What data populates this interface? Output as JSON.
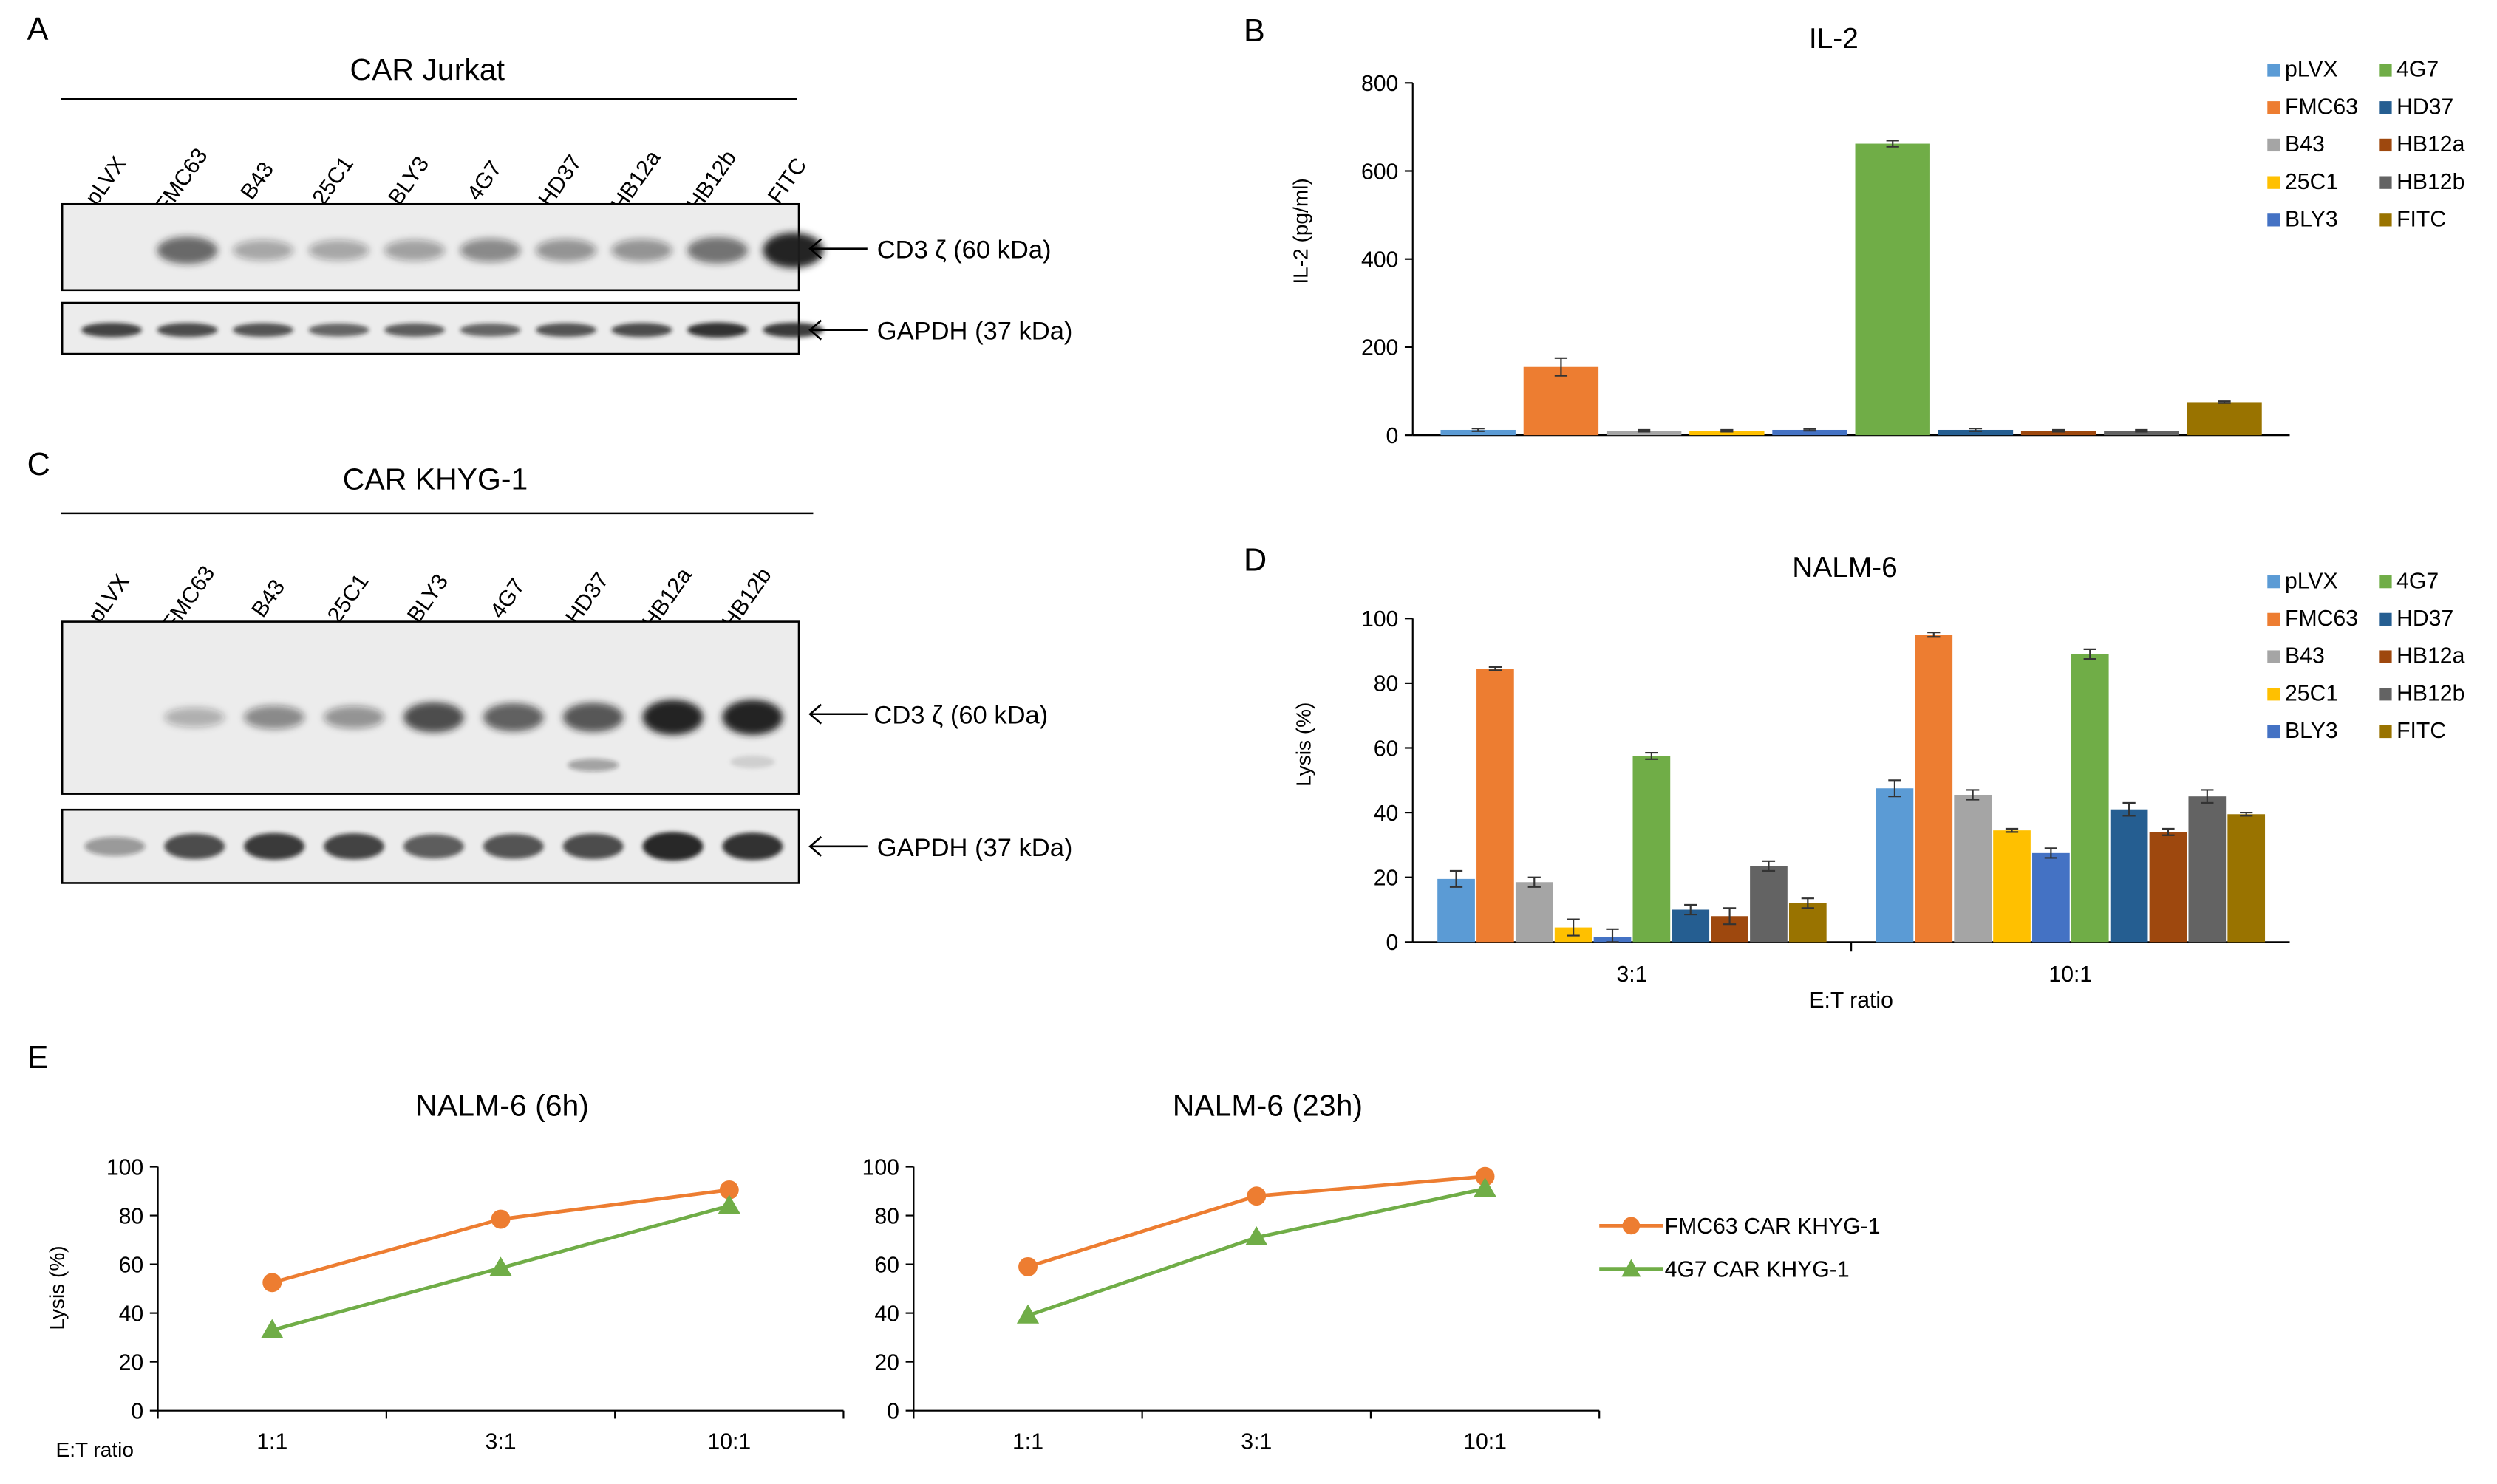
{
  "panel_letters": {
    "a": "A",
    "b": "B",
    "c": "C",
    "d": "D",
    "e": "E"
  },
  "colors": {
    "pLVX": "#5B9BD5",
    "FMC63": "#ED7D31",
    "B43": "#A5A5A5",
    "25C1": "#FFC000",
    "BLY3": "#4472C4",
    "4G7": "#70AD47",
    "HD37": "#255E91",
    "HB12a": "#9E480E",
    "HB12b": "#636363",
    "FITC": "#997300",
    "blot_bg": "#ececec",
    "band": "#1a1a1a"
  },
  "blot_a": {
    "title": "CAR Jurkat",
    "lanes": [
      "pLVX",
      "FMC63",
      "B43",
      "25C1",
      "BLY3",
      "4G7",
      "HD37",
      "HB12a",
      "HB12b",
      "FITC"
    ],
    "cd3_label": "CD3 ζ (60 kDa)",
    "gapdh_label": "GAPDH (37 kDa)",
    "cd3_intensity": [
      0.0,
      0.6,
      0.25,
      0.25,
      0.28,
      0.4,
      0.35,
      0.35,
      0.55,
      1.0
    ],
    "gapdh_intensity": [
      0.8,
      0.75,
      0.7,
      0.6,
      0.65,
      0.6,
      0.7,
      0.75,
      0.9,
      0.85
    ]
  },
  "blot_c": {
    "title": "CAR KHYG-1",
    "lanes": [
      "pLVX",
      "FMC63",
      "B43",
      "25C1",
      "BLY3",
      "4G7",
      "HD37",
      "HB12a",
      "HB12b"
    ],
    "cd3_label": "CD3 ζ (60 kDa)",
    "gapdh_label": "GAPDH (37 kDa)",
    "cd3_intensity": [
      0.0,
      0.2,
      0.4,
      0.35,
      0.75,
      0.65,
      0.7,
      1.0,
      1.0
    ],
    "gapdh_intensity": [
      0.25,
      0.75,
      0.85,
      0.8,
      0.65,
      0.7,
      0.75,
      1.0,
      0.9
    ]
  },
  "chart_data": [
    {
      "id": "B",
      "type": "bar",
      "title": "IL-2",
      "ylabel": "IL-2 (pg/ml)",
      "xlabel": "",
      "ylim": [
        0,
        800
      ],
      "yticks": [
        0,
        200,
        400,
        600,
        800
      ],
      "categories": [
        "pLVX",
        "FMC63",
        "B43",
        "25C1",
        "BLY3",
        "4G7",
        "HD37",
        "HB12a",
        "HB12b",
        "FITC"
      ],
      "values": [
        12,
        155,
        10,
        10,
        12,
        662,
        12,
        10,
        10,
        75
      ],
      "errors": [
        3,
        20,
        2,
        2,
        2,
        7,
        3,
        2,
        2,
        2
      ],
      "legend": {
        "placement": "right",
        "col1": [
          "pLVX",
          "FMC63",
          "B43",
          "25C1",
          "BLY3"
        ],
        "col2": [
          "4G7",
          "HD37",
          "HB12a",
          "HB12b",
          "FITC"
        ]
      }
    },
    {
      "id": "D",
      "type": "bar",
      "title": "NALM-6",
      "ylabel": "Lysis (%)",
      "xlabel": "E:T ratio",
      "ylim": [
        0,
        100
      ],
      "yticks": [
        0,
        20,
        40,
        60,
        80,
        100
      ],
      "categories": [
        "3:1",
        "10:1"
      ],
      "series": [
        {
          "name": "pLVX",
          "values": [
            19.5,
            47.5
          ],
          "errors": [
            2.5,
            2.5
          ]
        },
        {
          "name": "FMC63",
          "values": [
            84.5,
            95
          ],
          "errors": [
            0.5,
            0.7
          ]
        },
        {
          "name": "B43",
          "values": [
            18.5,
            45.5
          ],
          "errors": [
            1.5,
            1.5
          ]
        },
        {
          "name": "25C1",
          "values": [
            4.5,
            34.5
          ],
          "errors": [
            2.5,
            0.5
          ]
        },
        {
          "name": "BLY3",
          "values": [
            1.5,
            27.5
          ],
          "errors": [
            2.5,
            1.5
          ]
        },
        {
          "name": "4G7",
          "values": [
            57.5,
            89
          ],
          "errors": [
            1.0,
            1.5
          ]
        },
        {
          "name": "HD37",
          "values": [
            10,
            41
          ],
          "errors": [
            1.5,
            2.0
          ]
        },
        {
          "name": "HB12a",
          "values": [
            8,
            34
          ],
          "errors": [
            2.5,
            1.0
          ]
        },
        {
          "name": "HB12b",
          "values": [
            23.5,
            45
          ],
          "errors": [
            1.5,
            2.0
          ]
        },
        {
          "name": "FITC",
          "values": [
            12,
            39.5
          ],
          "errors": [
            1.5,
            0.5
          ]
        }
      ],
      "legend": {
        "placement": "right",
        "col1": [
          "pLVX",
          "FMC63",
          "B43",
          "25C1",
          "BLY3"
        ],
        "col2": [
          "4G7",
          "HD37",
          "HB12a",
          "HB12b",
          "FITC"
        ]
      }
    },
    {
      "id": "E1",
      "type": "line",
      "title": "NALM-6 (6h)",
      "ylabel": "Lysis (%)",
      "xlabel": "E:T ratio",
      "ylim": [
        0,
        100
      ],
      "yticks": [
        0,
        20,
        40,
        60,
        80,
        100
      ],
      "categories": [
        "1:1",
        "3:1",
        "10:1"
      ],
      "series": [
        {
          "name": "FMC63 CAR KHYG-1",
          "values": [
            52.5,
            78.5,
            90.5
          ],
          "color": "#ED7D31",
          "marker": "circle"
        },
        {
          "name": "4G7 CAR KHYG-1",
          "values": [
            33,
            58.5,
            84
          ],
          "color": "#70AD47",
          "marker": "triangle"
        }
      ]
    },
    {
      "id": "E2",
      "type": "line",
      "title": "NALM-6 (23h)",
      "ylabel": "",
      "xlabel": "",
      "ylim": [
        0,
        100
      ],
      "yticks": [
        0,
        20,
        40,
        60,
        80,
        100
      ],
      "categories": [
        "1:1",
        "3:1",
        "10:1"
      ],
      "series": [
        {
          "name": "FMC63 CAR KHYG-1",
          "values": [
            59,
            88,
            96
          ],
          "color": "#ED7D31",
          "marker": "circle"
        },
        {
          "name": "4G7 CAR KHYG-1",
          "values": [
            39,
            71,
            91
          ],
          "color": "#70AD47",
          "marker": "triangle"
        }
      ],
      "legend": {
        "placement": "right",
        "items": [
          "FMC63 CAR KHYG-1",
          "4G7 CAR KHYG-1"
        ]
      }
    }
  ]
}
